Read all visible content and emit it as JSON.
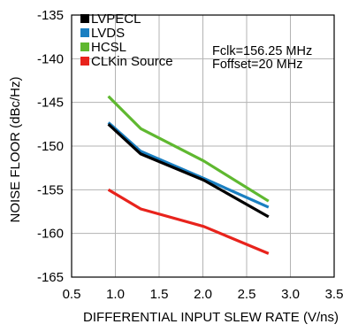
{
  "chart_data": {
    "type": "line",
    "title": "",
    "xlabel": "DIFFERENTIAL INPUT SLEW RATE (V/ns)",
    "ylabel": "NOISE FLOOR (dBc/Hz)",
    "xlim": [
      0.5,
      3.5
    ],
    "ylim": [
      -165,
      -135
    ],
    "xticks": [
      "0.5",
      "1.0",
      "1.5",
      "2.0",
      "2.5",
      "3.0",
      "3.5"
    ],
    "yticks": [
      "-135",
      "-140",
      "-145",
      "-150",
      "-155",
      "-160",
      "-165"
    ],
    "grid": true,
    "legend_position": "top-left",
    "annotations": [
      "Fclk=156.25 MHz",
      "Foffset=20 MHz"
    ],
    "series": [
      {
        "name": "LVPECL",
        "color": "#000000",
        "x": [
          0.92,
          1.29,
          2.01,
          2.75
        ],
        "y": [
          -147.5,
          -150.9,
          -153.9,
          -158.1
        ]
      },
      {
        "name": "LVDS",
        "color": "#1a7fc1",
        "x": [
          0.92,
          1.29,
          2.01,
          2.75
        ],
        "y": [
          -147.3,
          -150.6,
          -153.7,
          -157.0
        ]
      },
      {
        "name": "HCSL",
        "color": "#5fb830",
        "x": [
          0.92,
          1.29,
          2.01,
          2.75
        ],
        "y": [
          -144.3,
          -148.0,
          -151.7,
          -156.3
        ]
      },
      {
        "name": "CLKin Source",
        "color": "#e8231c",
        "x": [
          0.92,
          1.29,
          2.01,
          2.75
        ],
        "y": [
          -155.0,
          -157.2,
          -159.2,
          -162.3
        ]
      }
    ]
  }
}
